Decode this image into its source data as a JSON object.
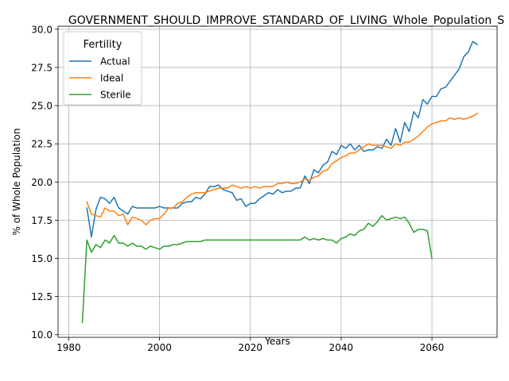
{
  "chart_data": {
    "type": "line",
    "title": "GOVERNMENT_SHOULD_IMPROVE_STANDARD_OF_LIVING_Whole_Population_S",
    "xlabel": "Years",
    "ylabel": "% of Whole Population",
    "xlim": [
      1977.65,
      2074.35
    ],
    "ylim": [
      9.83,
      30.2
    ],
    "xticks": [
      1980,
      2000,
      2020,
      2040,
      2060
    ],
    "yticks": [
      10.0,
      12.5,
      15.0,
      17.5,
      20.0,
      22.5,
      25.0,
      27.5,
      30.0
    ],
    "xtick_labels": [
      "1980",
      "2000",
      "2020",
      "2040",
      "2060"
    ],
    "ytick_labels": [
      "10.0",
      "12.5",
      "15.0",
      "17.5",
      "20.0",
      "22.5",
      "25.0",
      "27.5",
      "30.0"
    ],
    "grid": true,
    "legend": {
      "title": "Fertility",
      "position": "top-left"
    },
    "series": [
      {
        "name": "Actual",
        "color": "#1f77b4",
        "x": [
          1984,
          1985,
          1986,
          1987,
          1988,
          1989,
          1990,
          1991,
          1992,
          1993,
          1994,
          1995,
          1996,
          1997,
          1998,
          1999,
          2000,
          2001,
          2002,
          2003,
          2004,
          2005,
          2006,
          2007,
          2008,
          2009,
          2010,
          2011,
          2012,
          2013,
          2014,
          2015,
          2016,
          2017,
          2018,
          2019,
          2020,
          2021,
          2022,
          2023,
          2024,
          2025,
          2026,
          2027,
          2028,
          2029,
          2030,
          2031,
          2032,
          2033,
          2034,
          2035,
          2036,
          2037,
          2038,
          2039,
          2040,
          2041,
          2042,
          2043,
          2044,
          2045,
          2046,
          2047,
          2048,
          2049,
          2050,
          2051,
          2052,
          2053,
          2054,
          2055,
          2056,
          2057,
          2058,
          2059,
          2060,
          2061,
          2062,
          2063,
          2064,
          2065,
          2066,
          2067,
          2068,
          2069,
          2070
        ],
        "values": [
          18.3,
          16.4,
          18.2,
          19.0,
          18.9,
          18.6,
          19.0,
          18.3,
          18.1,
          17.9,
          18.4,
          18.3,
          18.3,
          18.3,
          18.3,
          18.3,
          18.4,
          18.3,
          18.3,
          18.3,
          18.3,
          18.6,
          18.7,
          18.7,
          19.0,
          18.9,
          19.2,
          19.7,
          19.7,
          19.8,
          19.5,
          19.4,
          19.3,
          18.8,
          18.9,
          18.4,
          18.6,
          18.6,
          18.9,
          19.1,
          19.3,
          19.2,
          19.5,
          19.3,
          19.4,
          19.4,
          19.6,
          19.6,
          20.4,
          19.9,
          20.8,
          20.6,
          21.1,
          21.3,
          22.0,
          21.8,
          22.4,
          22.2,
          22.5,
          22.1,
          22.4,
          22.0,
          22.1,
          22.1,
          22.3,
          22.2,
          22.8,
          22.4,
          23.5,
          22.6,
          23.9,
          23.3,
          24.6,
          24.2,
          25.4,
          25.1,
          25.6,
          25.6,
          26.1,
          26.2,
          26.6,
          27.0,
          27.4,
          28.2,
          28.5,
          29.2,
          29.0
        ]
      },
      {
        "name": "Ideal",
        "color": "#ff7f0e",
        "x": [
          1984,
          1985,
          1986,
          1987,
          1988,
          1989,
          1990,
          1991,
          1992,
          1993,
          1994,
          1995,
          1996,
          1997,
          1998,
          1999,
          2000,
          2001,
          2002,
          2003,
          2004,
          2005,
          2006,
          2007,
          2008,
          2009,
          2010,
          2011,
          2012,
          2013,
          2014,
          2015,
          2016,
          2017,
          2018,
          2019,
          2020,
          2021,
          2022,
          2023,
          2024,
          2025,
          2026,
          2027,
          2028,
          2029,
          2030,
          2031,
          2032,
          2033,
          2034,
          2035,
          2036,
          2037,
          2038,
          2039,
          2040,
          2041,
          2042,
          2043,
          2044,
          2045,
          2046,
          2047,
          2048,
          2049,
          2050,
          2051,
          2052,
          2053,
          2054,
          2055,
          2056,
          2057,
          2058,
          2059,
          2060,
          2061,
          2062,
          2063,
          2064,
          2065,
          2066,
          2067,
          2068,
          2069,
          2070
        ],
        "values": [
          18.7,
          17.9,
          17.8,
          17.7,
          18.3,
          18.1,
          18.1,
          17.8,
          17.9,
          17.2,
          17.7,
          17.6,
          17.5,
          17.2,
          17.5,
          17.6,
          17.6,
          17.9,
          18.3,
          18.3,
          18.6,
          18.7,
          19.0,
          19.2,
          19.3,
          19.3,
          19.3,
          19.4,
          19.5,
          19.6,
          19.6,
          19.6,
          19.8,
          19.7,
          19.6,
          19.7,
          19.6,
          19.7,
          19.6,
          19.7,
          19.7,
          19.7,
          19.9,
          19.9,
          20.0,
          19.9,
          19.9,
          20.0,
          20.2,
          20.1,
          20.3,
          20.4,
          20.7,
          20.8,
          21.2,
          21.4,
          21.6,
          21.7,
          21.9,
          21.9,
          22.1,
          22.3,
          22.5,
          22.4,
          22.4,
          22.4,
          22.3,
          22.2,
          22.5,
          22.4,
          22.6,
          22.6,
          22.8,
          23.0,
          23.3,
          23.6,
          23.8,
          23.9,
          24.0,
          24.0,
          24.2,
          24.1,
          24.2,
          24.1,
          24.2,
          24.3,
          24.5
        ]
      },
      {
        "name": "Sterile",
        "color": "#2ca02c",
        "x": [
          1983,
          1984,
          1985,
          1986,
          1987,
          1988,
          1989,
          1990,
          1991,
          1992,
          1993,
          1994,
          1995,
          1996,
          1997,
          1998,
          1999,
          2000,
          2001,
          2002,
          2003,
          2004,
          2005,
          2006,
          2007,
          2008,
          2009,
          2010,
          2011,
          2012,
          2013,
          2014,
          2015,
          2016,
          2017,
          2018,
          2019,
          2020,
          2021,
          2022,
          2023,
          2024,
          2025,
          2026,
          2027,
          2028,
          2029,
          2030,
          2031,
          2032,
          2033,
          2034,
          2035,
          2036,
          2037,
          2038,
          2039,
          2040,
          2041,
          2042,
          2043,
          2044,
          2045,
          2046,
          2047,
          2048,
          2049,
          2050,
          2051,
          2052,
          2053,
          2054,
          2055,
          2056,
          2057,
          2058,
          2059,
          2060
        ],
        "values": [
          10.8,
          16.2,
          15.4,
          15.9,
          15.7,
          16.2,
          16.0,
          16.5,
          16.0,
          16.0,
          15.8,
          16.0,
          15.8,
          15.8,
          15.6,
          15.8,
          15.7,
          15.6,
          15.8,
          15.8,
          15.9,
          15.9,
          16.0,
          16.1,
          16.1,
          16.1,
          16.1,
          16.2,
          16.2,
          16.2,
          16.2,
          16.2,
          16.2,
          16.2,
          16.2,
          16.2,
          16.2,
          16.2,
          16.2,
          16.2,
          16.2,
          16.2,
          16.2,
          16.2,
          16.2,
          16.2,
          16.2,
          16.2,
          16.2,
          16.4,
          16.2,
          16.3,
          16.2,
          16.3,
          16.2,
          16.2,
          16.0,
          16.3,
          16.4,
          16.6,
          16.5,
          16.8,
          16.9,
          17.3,
          17.1,
          17.4,
          17.8,
          17.5,
          17.6,
          17.7,
          17.6,
          17.7,
          17.3,
          16.7,
          16.9,
          16.9,
          16.8,
          15.0
        ]
      }
    ]
  }
}
